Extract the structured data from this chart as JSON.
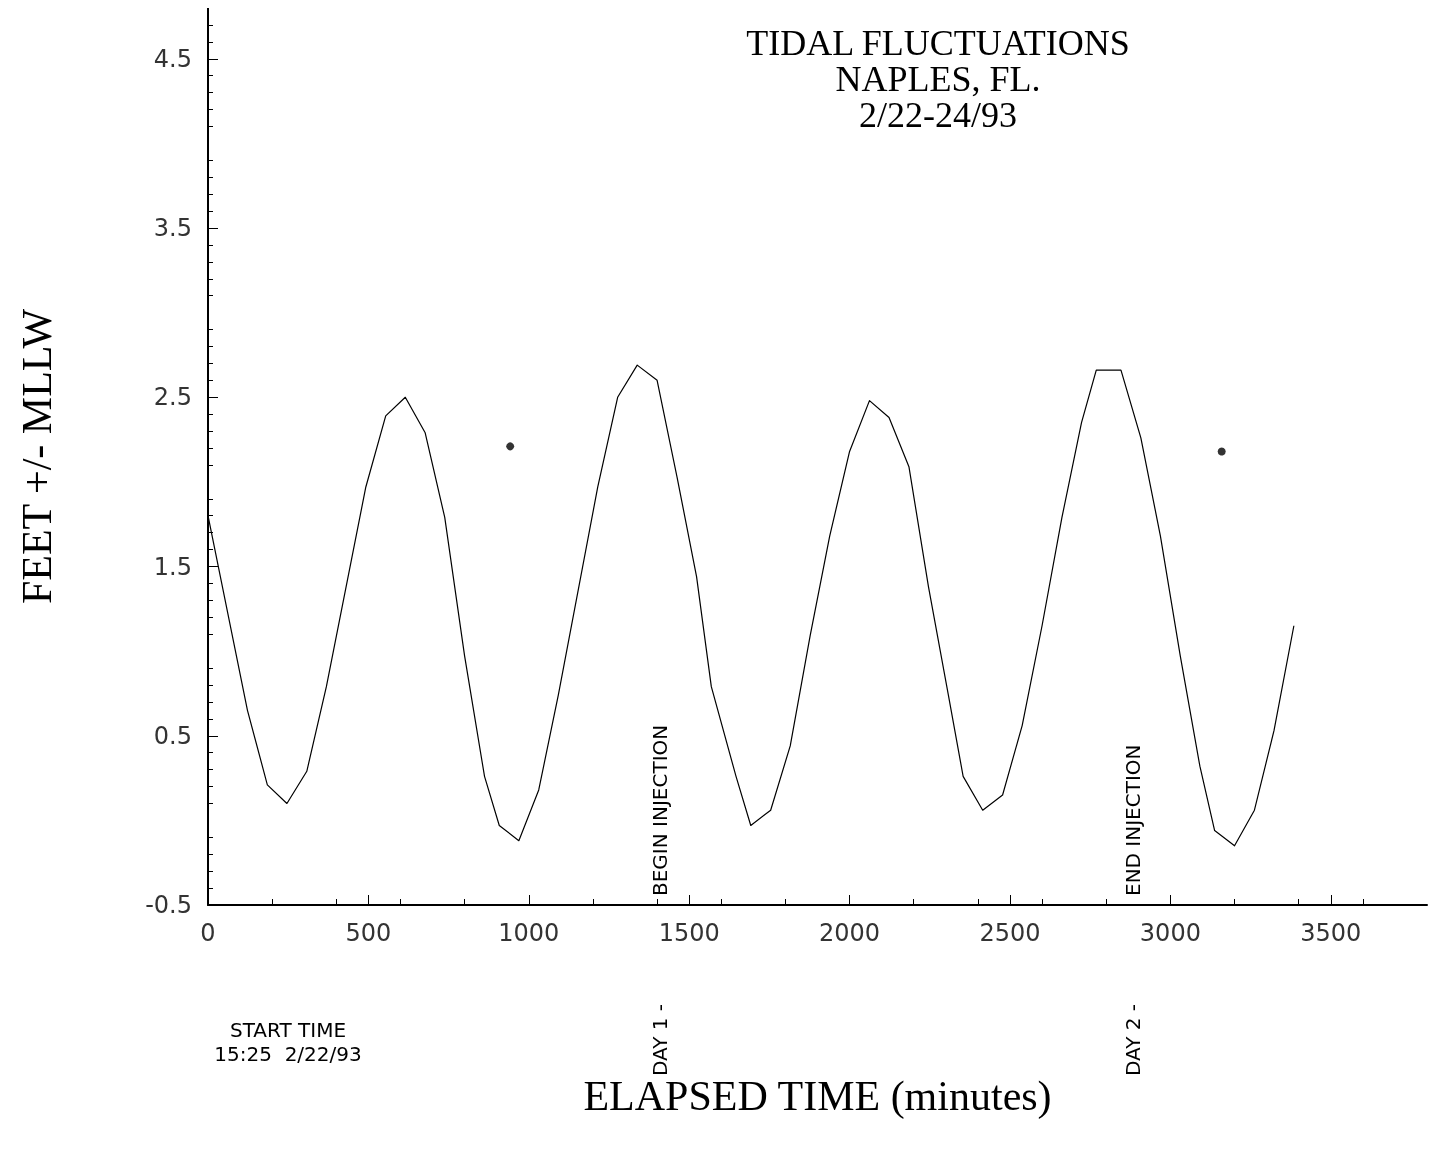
{
  "chart_data": {
    "type": "line",
    "title": "TIDAL FLUCTUATIONS\nNAPLES, FL.\n2/22-24/93",
    "xlabel": "ELAPSED TIME (minutes)",
    "ylabel": "FEET +/- MLLW",
    "xlim": [
      0,
      3800
    ],
    "xticks": [
      0,
      500,
      1000,
      1500,
      2000,
      2500,
      3000,
      3500
    ],
    "ylim": [
      -0.5,
      4.8
    ],
    "yticks": [
      -0.5,
      0.5,
      1.5,
      2.5,
      3.5,
      4.5
    ],
    "grid": false,
    "marker": "none",
    "line_style": "solid",
    "series": [
      {
        "color": "#000000",
        "x": [
          0,
          123,
          185,
          246,
          308,
          369,
          492,
          554,
          615,
          677,
          738,
          800,
          862,
          908,
          969,
          1031,
          1092,
          1215,
          1277,
          1338,
          1400,
          1462,
          1523,
          1569,
          1646,
          1692,
          1754,
          1815,
          1877,
          1938,
          2000,
          2062,
          2123,
          2185,
          2246,
          2308,
          2354,
          2415,
          2477,
          2538,
          2600,
          2662,
          2723,
          2769,
          2846,
          2908,
          2969,
          3031,
          3092,
          3138,
          3200,
          3262,
          3323,
          3385
        ],
        "values": [
          1.8,
          0.65,
          0.21,
          0.1,
          0.29,
          0.79,
          1.97,
          2.39,
          2.5,
          2.29,
          1.79,
          0.97,
          0.26,
          -0.03,
          -0.12,
          0.18,
          0.74,
          1.97,
          2.5,
          2.69,
          2.6,
          2.03,
          1.44,
          0.79,
          0.26,
          -0.03,
          0.06,
          0.44,
          1.09,
          1.68,
          2.18,
          2.48,
          2.38,
          2.09,
          1.38,
          0.74,
          0.26,
          0.06,
          0.15,
          0.56,
          1.15,
          1.79,
          2.35,
          2.66,
          2.66,
          2.26,
          1.68,
          0.97,
          0.32,
          -0.06,
          -0.15,
          0.06,
          0.53,
          1.15
        ]
      },
      {
        "type": "scatter",
        "color": "#000000",
        "marker": "circle",
        "x": [
          942,
          3160
        ],
        "values": [
          2.21,
          2.18
        ]
      }
    ],
    "annotations": [
      "BEGIN INJECTION",
      "END INJECTION",
      "DAY 1 -",
      "DAY 2 -",
      "START TIME\n15:25  2/22/93"
    ]
  }
}
